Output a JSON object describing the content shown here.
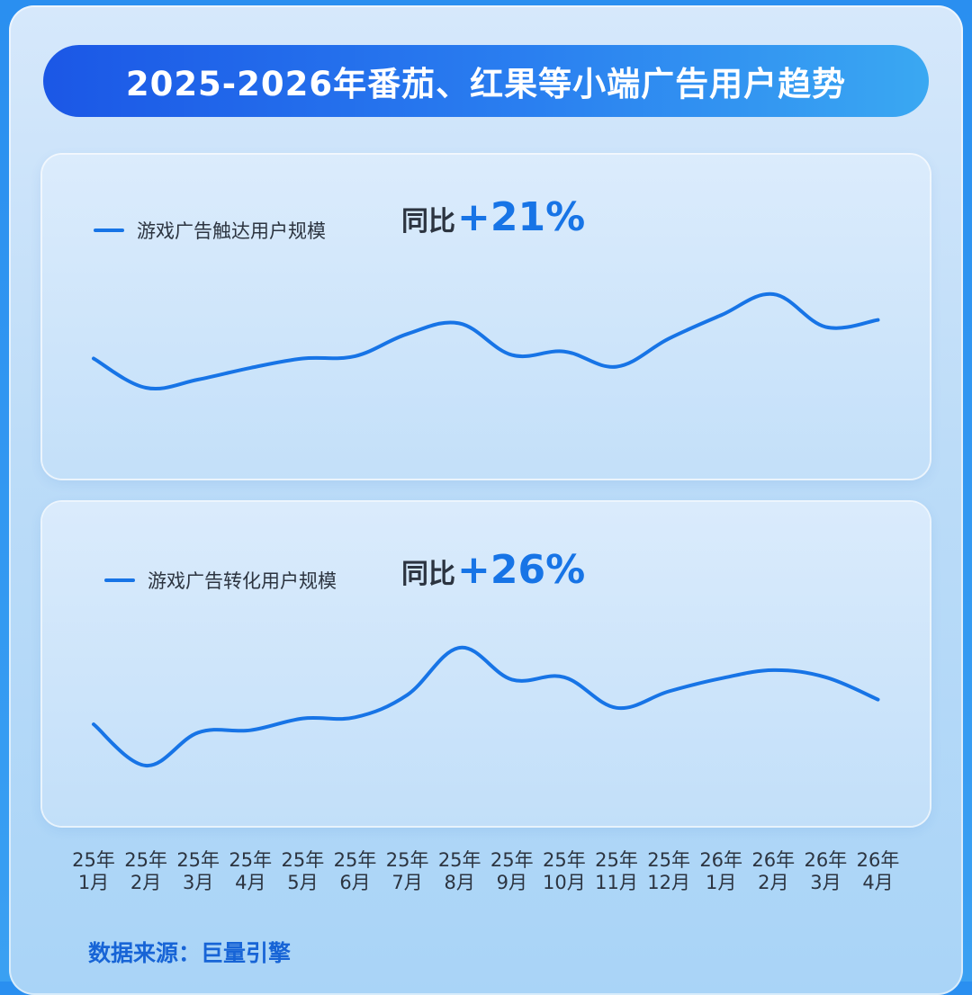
{
  "title": "2025-2026年番茄、红果等小端广告用户趋势",
  "colors": {
    "line": "#1774e6",
    "banner_start": "#1b57e6",
    "banner_end": "#3aa8f2"
  },
  "chart_data": [
    {
      "type": "line",
      "legend_position": "top-left",
      "grid": false,
      "series": [
        {
          "name": "游戏广告触达用户规模",
          "values": [
            45,
            20,
            27,
            37,
            45,
            47,
            66,
            75,
            48,
            51,
            38,
            62,
            82,
            100,
            72,
            78
          ]
        }
      ],
      "yoy_label": "同比",
      "yoy_value": "+21%",
      "ylim": [
        0,
        110
      ]
    },
    {
      "type": "line",
      "legend_position": "top-left",
      "grid": false,
      "series": [
        {
          "name": "游戏广告转化用户规模",
          "values": [
            35,
            0,
            28,
            30,
            40,
            41,
            60,
            100,
            73,
            75,
            49,
            63,
            74,
            81,
            75,
            56
          ]
        }
      ],
      "yoy_label": "同比",
      "yoy_value": "+26%",
      "ylim": [
        0,
        110
      ]
    }
  ],
  "x_axis": {
    "ticks": [
      {
        "year": "25年",
        "month": "1月"
      },
      {
        "year": "25年",
        "month": "2月"
      },
      {
        "year": "25年",
        "month": "3月"
      },
      {
        "year": "25年",
        "month": "4月"
      },
      {
        "year": "25年",
        "month": "5月"
      },
      {
        "year": "25年",
        "month": "6月"
      },
      {
        "year": "25年",
        "month": "7月"
      },
      {
        "year": "25年",
        "month": "8月"
      },
      {
        "year": "25年",
        "month": "9月"
      },
      {
        "year": "25年",
        "month": "10月"
      },
      {
        "year": "25年",
        "month": "11月"
      },
      {
        "year": "25年",
        "month": "12月"
      },
      {
        "year": "26年",
        "month": "1月"
      },
      {
        "year": "26年",
        "month": "2月"
      },
      {
        "year": "26年",
        "month": "3月"
      },
      {
        "year": "26年",
        "month": "4月"
      }
    ]
  },
  "source": "数据来源：巨量引擎"
}
